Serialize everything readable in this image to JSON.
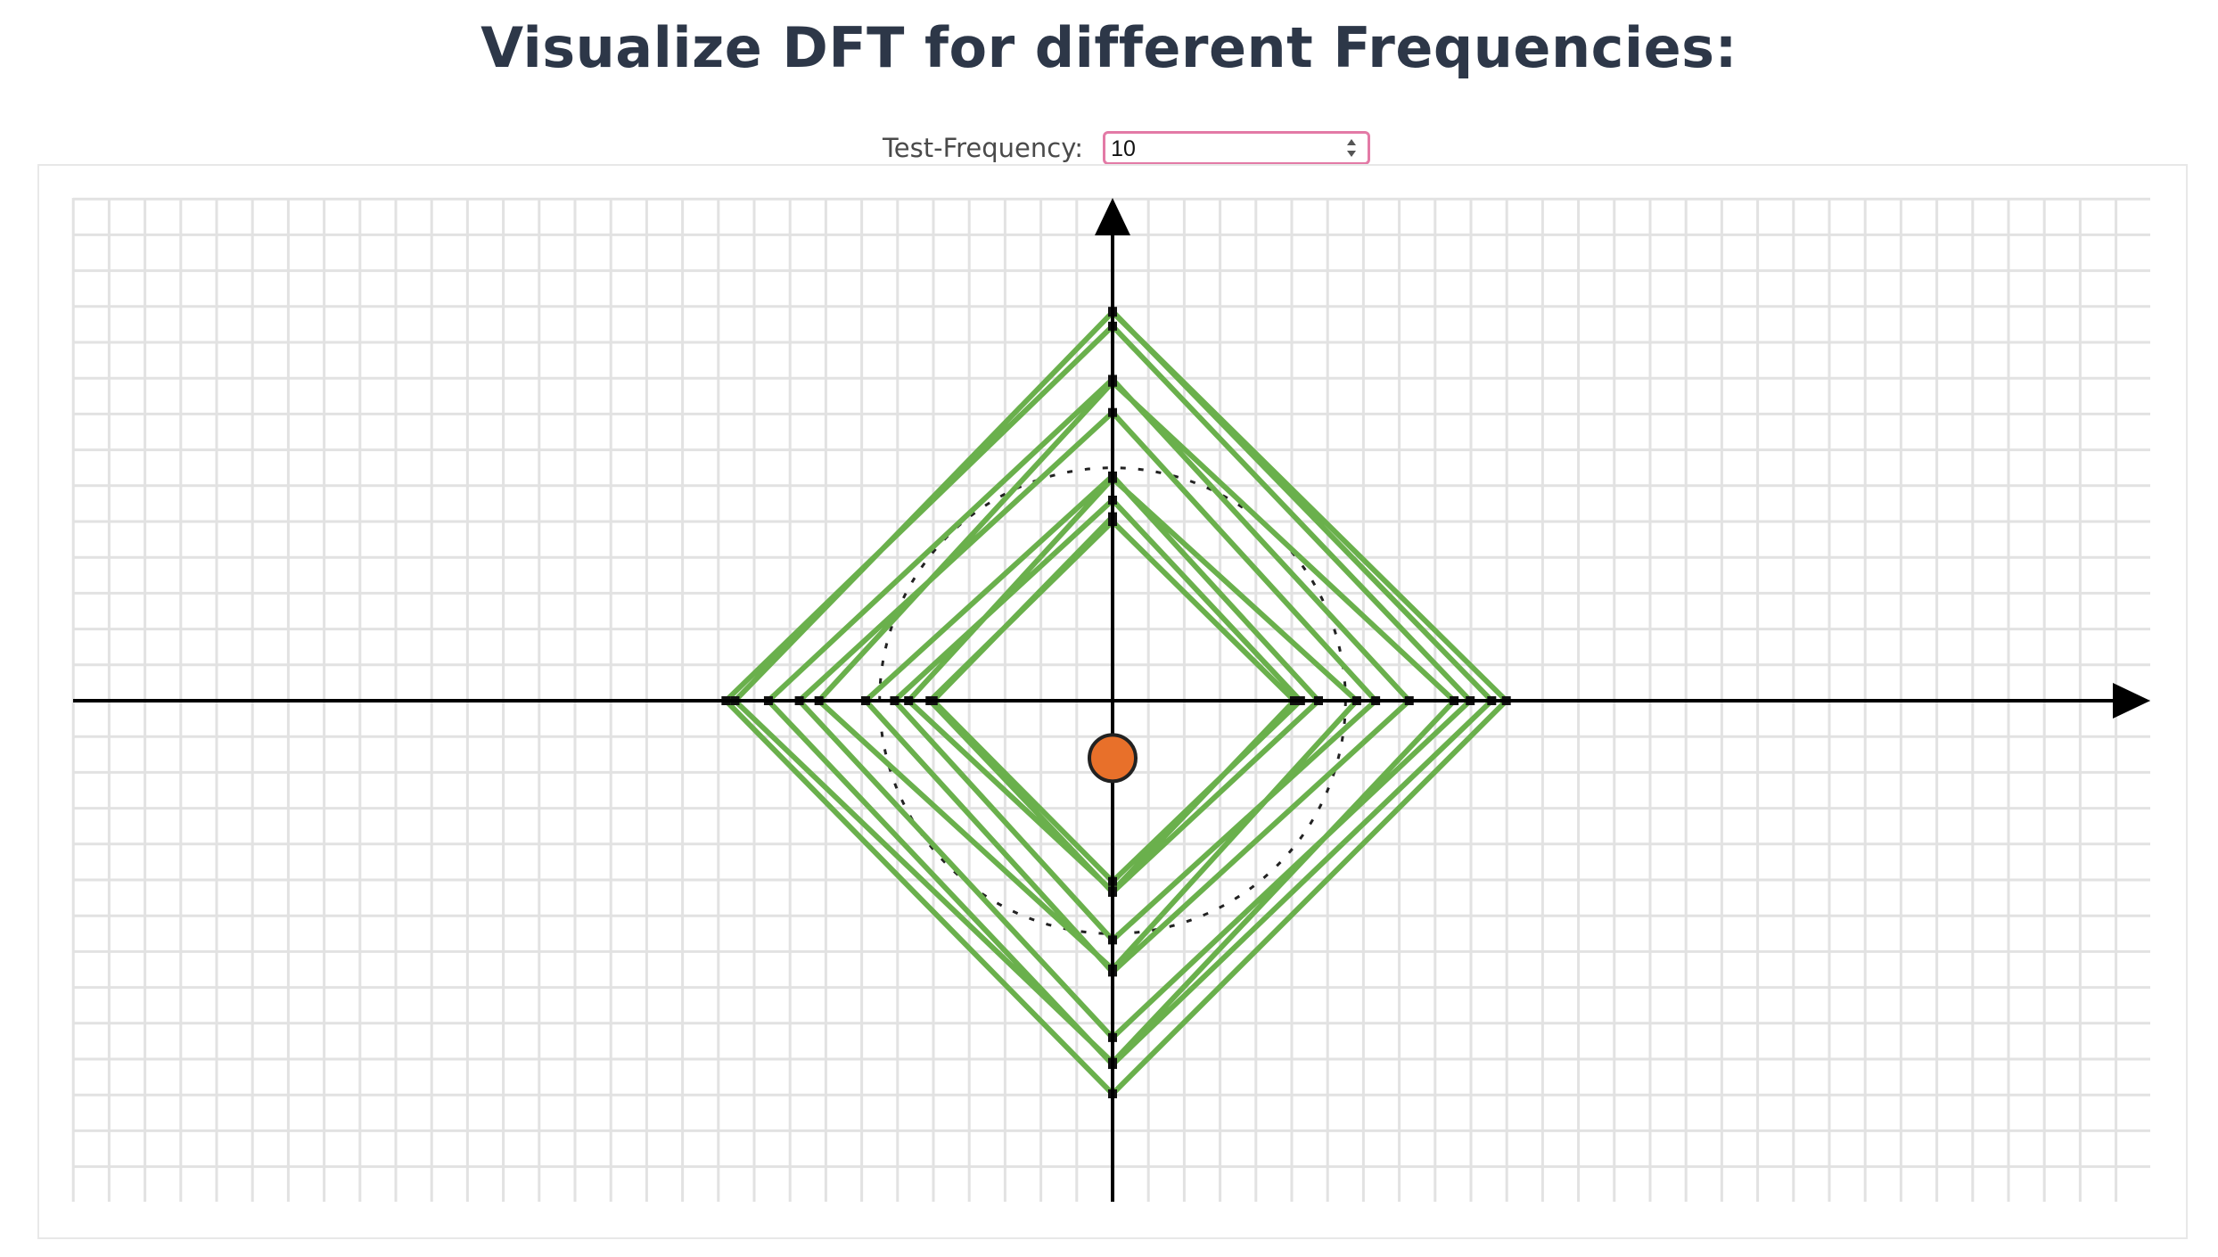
{
  "page": {
    "title": "Visualize DFT for different Frequencies:"
  },
  "controls": {
    "frequency_label": "Test-Frequency:",
    "frequency_value": "10"
  },
  "colors": {
    "path": "#6ab04c",
    "points": "#111111",
    "center_of_mass": "#e8702a",
    "grid": "#e2e2e2",
    "axes": "#000000",
    "input_border": "#e37aa6"
  },
  "icons": {
    "spinner": "number-stepper-icon",
    "axis_arrows": "arrow-icon"
  },
  "chart_data": {
    "type": "scatter",
    "grid": true,
    "xlim": [
      -29,
      29
    ],
    "ylim": [
      -14,
      14
    ],
    "wound_path": {
      "samples": 40,
      "radius_min": 5,
      "radius_max": 11,
      "turns": 4,
      "stroke": "#6ab04c"
    },
    "reference_circle_radius": 6.5,
    "center_of_mass": [
      0,
      -1.6
    ]
  }
}
